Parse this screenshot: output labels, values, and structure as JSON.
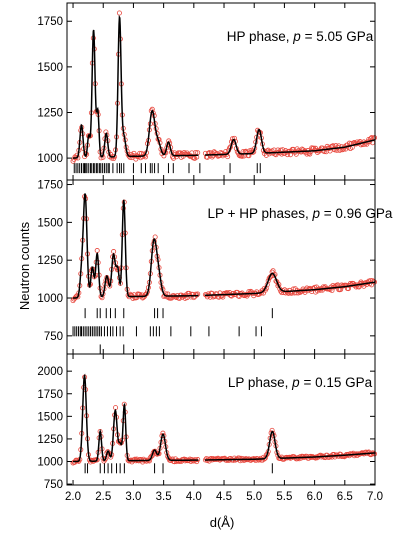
{
  "figure": {
    "ylabel": "Neutron counts",
    "xlabel": "d(Å)"
  },
  "chart_data": [
    {
      "type": "line",
      "panel_label": {
        "text": "HP phase, ",
        "p": "p",
        "rest": " = 5.05 GPa"
      },
      "xlim": [
        1.9,
        7.0
      ],
      "ylim": [
        880,
        1850
      ],
      "yticks": [
        1000,
        1250,
        1500,
        1750
      ],
      "xticks": [
        2.0,
        2.5,
        3.0,
        3.5,
        4.0,
        4.5,
        5.0,
        5.5,
        6.0,
        6.5,
        7.0
      ],
      "gap": [
        4.08,
        4.18
      ],
      "background": [
        [
          2.0,
          1000
        ],
        [
          3.0,
          1010
        ],
        [
          4.0,
          1015
        ],
        [
          5.0,
          1025
        ],
        [
          6.0,
          1040
        ],
        [
          6.5,
          1060
        ],
        [
          7.0,
          1100
        ]
      ],
      "peaks": [
        [
          2.14,
          180,
          0.025
        ],
        [
          2.26,
          120,
          0.02
        ],
        [
          2.34,
          700,
          0.025
        ],
        [
          2.41,
          250,
          0.02
        ],
        [
          2.55,
          130,
          0.025
        ],
        [
          2.77,
          760,
          0.025
        ],
        [
          2.84,
          110,
          0.03
        ],
        [
          3.31,
          245,
          0.045
        ],
        [
          3.41,
          70,
          0.04
        ],
        [
          3.58,
          75,
          0.03
        ],
        [
          4.66,
          80,
          0.04
        ],
        [
          5.08,
          130,
          0.04
        ]
      ],
      "tick_rows": [
        {
          "y": 945,
          "positions": [
            2.02,
            2.05,
            2.08,
            2.11,
            2.14,
            2.17,
            2.19,
            2.21,
            2.23,
            2.26,
            2.29,
            2.31,
            2.34,
            2.36,
            2.39,
            2.41,
            2.44,
            2.46,
            2.49,
            2.52,
            2.55,
            2.58,
            2.6,
            2.66,
            2.73,
            2.77,
            2.8,
            2.84,
            3.0,
            3.13,
            3.2,
            3.28,
            3.31,
            3.35,
            3.41,
            3.58,
            3.66,
            3.92,
            4.1,
            4.6,
            5.05,
            5.1
          ]
        }
      ]
    },
    {
      "type": "line",
      "panel_label": {
        "text": "LP + HP phases, ",
        "p": "p",
        "rest": " = 0.96 GPa"
      },
      "xlim": [
        1.9,
        7.0
      ],
      "ylim": [
        630,
        1780
      ],
      "yticks": [
        750,
        1000,
        1250,
        1500,
        1750
      ],
      "xticks": [
        2.0,
        2.5,
        3.0,
        3.5,
        4.0,
        4.5,
        5.0,
        5.5,
        6.0,
        6.5,
        7.0
      ],
      "gap": [
        4.08,
        4.18
      ],
      "background": [
        [
          2.0,
          1000
        ],
        [
          3.0,
          1010
        ],
        [
          4.0,
          1015
        ],
        [
          5.0,
          1030
        ],
        [
          6.0,
          1055
        ],
        [
          6.5,
          1075
        ],
        [
          7.0,
          1105
        ]
      ],
      "peaks": [
        [
          2.14,
          150,
          0.025
        ],
        [
          2.2,
          680,
          0.03
        ],
        [
          2.32,
          200,
          0.025
        ],
        [
          2.4,
          290,
          0.025
        ],
        [
          2.56,
          140,
          0.03
        ],
        [
          2.67,
          280,
          0.03
        ],
        [
          2.74,
          180,
          0.025
        ],
        [
          2.84,
          640,
          0.025
        ],
        [
          3.34,
          360,
          0.045
        ],
        [
          3.42,
          120,
          0.04
        ],
        [
          5.3,
          125,
          0.07
        ]
      ],
      "tick_rows": [
        {
          "y": 900,
          "positions": [
            2.2,
            2.4,
            2.45,
            2.55,
            2.62,
            2.7,
            2.84,
            3.35,
            3.4,
            3.49,
            5.3
          ]
        },
        {
          "y": 780,
          "positions": [
            2.0,
            2.03,
            2.06,
            2.09,
            2.12,
            2.14,
            2.17,
            2.2,
            2.23,
            2.26,
            2.29,
            2.32,
            2.35,
            2.38,
            2.41,
            2.44,
            2.47,
            2.52,
            2.57,
            2.62,
            2.66,
            2.72,
            2.78,
            2.83,
            3.05,
            3.28,
            3.33,
            3.38,
            3.43,
            3.62,
            3.95,
            4.25,
            4.75,
            5.03,
            5.12
          ]
        },
        {
          "y": 660,
          "positions": [
            2.45,
            2.84
          ]
        }
      ]
    },
    {
      "type": "line",
      "panel_label": {
        "text": "LP phase, ",
        "p": "p",
        "rest": " = 0.15 GPa"
      },
      "xlim": [
        1.9,
        7.0
      ],
      "ylim": [
        740,
        2190
      ],
      "yticks": [
        750,
        1000,
        1250,
        1500,
        1750,
        2000
      ],
      "xticks": [
        2.0,
        2.5,
        3.0,
        3.5,
        4.0,
        4.5,
        5.0,
        5.5,
        6.0,
        6.5,
        7.0
      ],
      "xticklabels": [
        "2.0",
        "2.5",
        "3.0",
        "3.5",
        "4.0",
        "4.5",
        "5.0",
        "5.5",
        "6.0",
        "6.5",
        "7.0"
      ],
      "gap": [
        4.08,
        4.18
      ],
      "background": [
        [
          2.0,
          1000
        ],
        [
          3.0,
          1010
        ],
        [
          4.0,
          1015
        ],
        [
          5.0,
          1025
        ],
        [
          6.0,
          1050
        ],
        [
          6.5,
          1070
        ],
        [
          7.0,
          1095
        ]
      ],
      "peaks": [
        [
          2.19,
          950,
          0.03
        ],
        [
          2.45,
          330,
          0.022
        ],
        [
          2.58,
          110,
          0.025
        ],
        [
          2.7,
          560,
          0.03
        ],
        [
          2.78,
          180,
          0.025
        ],
        [
          2.85,
          620,
          0.022
        ],
        [
          3.35,
          115,
          0.035
        ],
        [
          3.49,
          290,
          0.04
        ],
        [
          5.3,
          300,
          0.045
        ]
      ],
      "tick_rows": [
        {
          "y": 925,
          "positions": [
            2.2,
            2.24,
            2.45,
            2.52,
            2.58,
            2.64,
            2.72,
            2.78,
            2.85,
            3.35,
            3.49,
            5.3
          ]
        }
      ]
    }
  ]
}
